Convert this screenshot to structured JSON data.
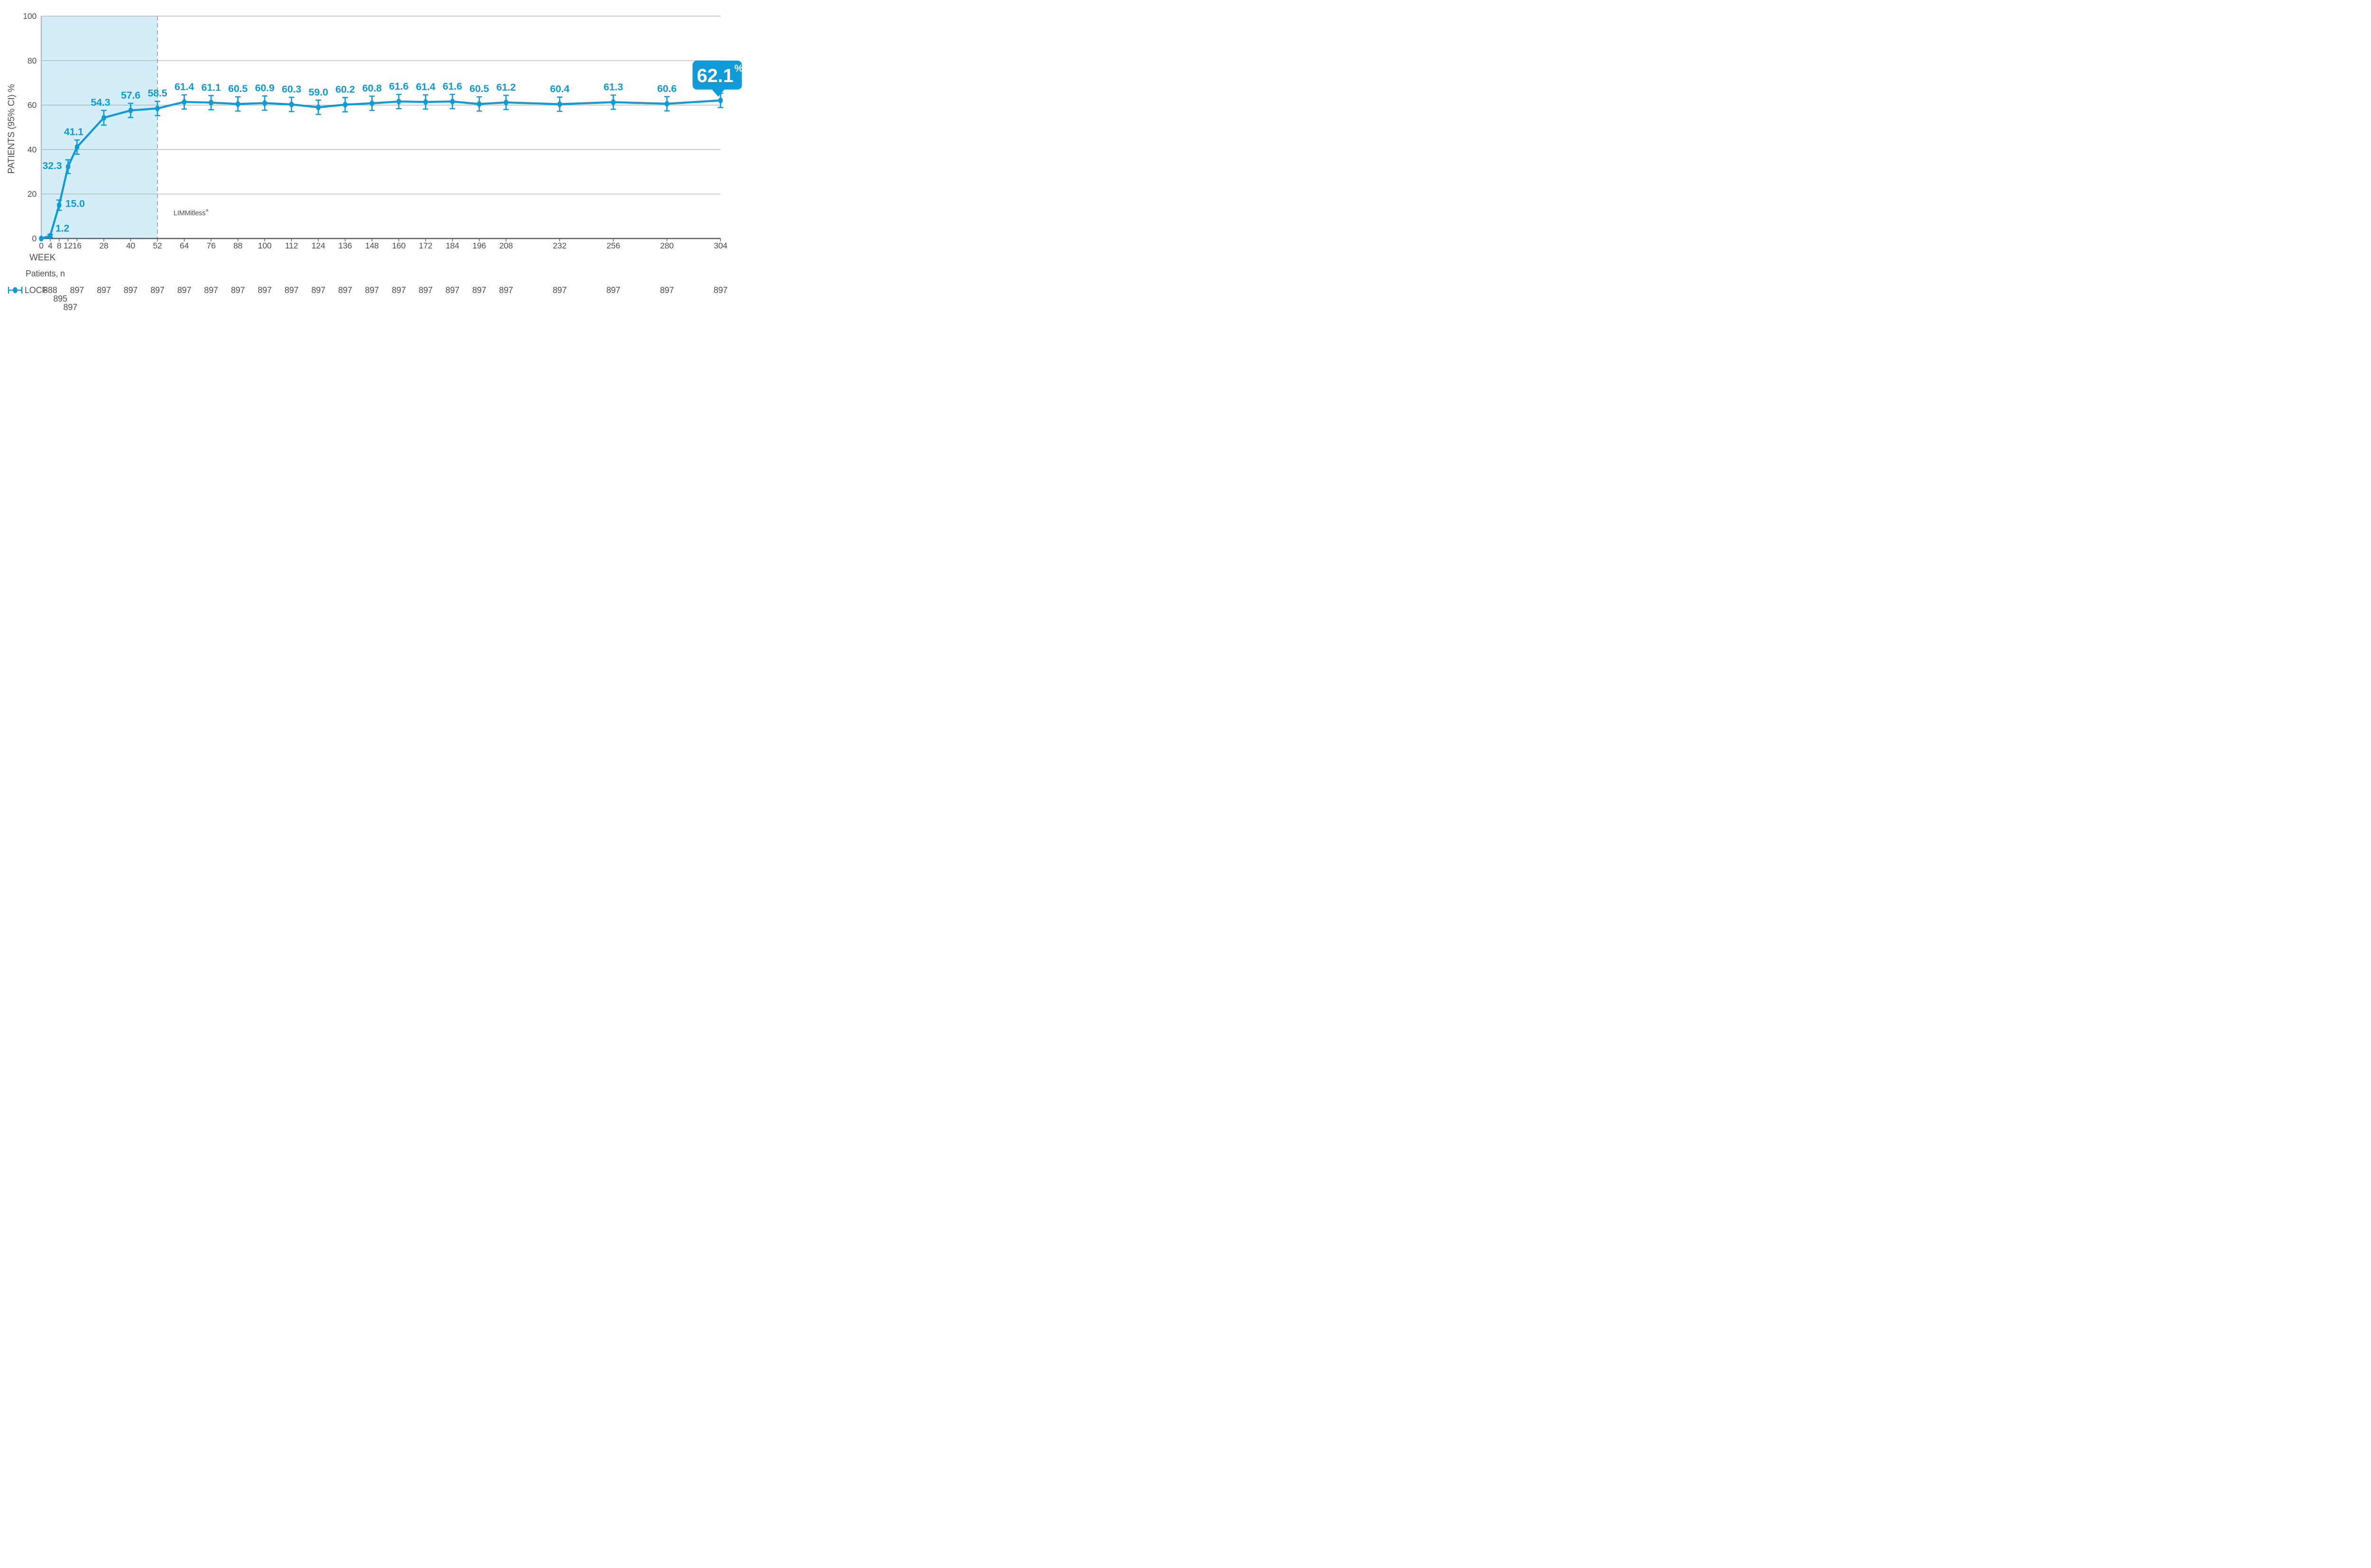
{
  "page": {
    "background": "#ffffff"
  },
  "colors": {
    "accent_blue": "#109bd8",
    "region_fill": "#d3edf9",
    "gridline": "#ababab",
    "dashed_line": "#9b9b9b",
    "x_axis": "#555a60",
    "y_axis": "#9aa2a8",
    "text_dark": "#4b5056",
    "callout_text": "#ffffff"
  },
  "chart_data": {
    "type": "line",
    "title": "",
    "ylabel": "PATIENTS (95% CI) %",
    "xlabel": "WEEK",
    "ylim": [
      0,
      100
    ],
    "yticks": [
      0,
      20,
      40,
      60,
      80,
      100
    ],
    "grid": "horizontal-on",
    "legend_position": "bottom-left",
    "patients_row_label": "Patients, n",
    "region_label": "LIMMitless",
    "region_label_sup": "a",
    "shaded_region": {
      "from_week": 0,
      "to_week": 52
    },
    "callout": {
      "week": 304,
      "value": "62.1",
      "unit": "%"
    },
    "series": [
      {
        "name": "LOCF",
        "points": [
          {
            "week": 0,
            "value": 0,
            "err": 0,
            "n": 888,
            "label": null,
            "label_side": null,
            "n_text": "888",
            "n_row": 1,
            "n_week": 4
          },
          {
            "week": 4,
            "value": 1.2,
            "err": 0.7,
            "n": 895,
            "label": "1.2",
            "label_side": "right-up",
            "n_text": "895",
            "n_row": 2,
            "n_week": 8.5
          },
          {
            "week": 8,
            "value": 15.0,
            "err": 2.3,
            "n": 897,
            "label": "15.0",
            "label_side": "right",
            "n_text": "897",
            "n_row": 3,
            "n_week": 13
          },
          {
            "week": 12,
            "value": 32.3,
            "err": 3.1,
            "n": 897,
            "label": "32.3",
            "label_side": "left",
            "n_text": null,
            "n_row": null,
            "n_week": null
          },
          {
            "week": 16,
            "value": 41.1,
            "err": 3.2,
            "n": 897,
            "label": "41.1",
            "label_side": "above-left",
            "n_text": "897",
            "n_row": 1,
            "n_week": 16
          },
          {
            "week": 28,
            "value": 54.3,
            "err": 3.3,
            "n": 897,
            "label": "54.3",
            "label_side": "above-left",
            "n_text": "897",
            "n_row": 1,
            "n_week": 28
          },
          {
            "week": 40,
            "value": 57.6,
            "err": 3.2,
            "n": 897,
            "label": "57.6",
            "label_side": "above",
            "n_text": "897",
            "n_row": 1,
            "n_week": 40
          },
          {
            "week": 52,
            "value": 58.5,
            "err": 3.2,
            "n": 897,
            "label": "58.5",
            "label_side": "above",
            "n_text": "897",
            "n_row": 1,
            "n_week": 52
          },
          {
            "week": 64,
            "value": 61.4,
            "err": 3.2,
            "n": 897,
            "label": "61.4",
            "label_side": "above",
            "n_text": "897",
            "n_row": 1,
            "n_week": 64
          },
          {
            "week": 76,
            "value": 61.1,
            "err": 3.2,
            "n": 897,
            "label": "61.1",
            "label_side": "above",
            "n_text": "897",
            "n_row": 1,
            "n_week": 76
          },
          {
            "week": 88,
            "value": 60.5,
            "err": 3.2,
            "n": 897,
            "label": "60.5",
            "label_side": "above",
            "n_text": "897",
            "n_row": 1,
            "n_week": 88
          },
          {
            "week": 100,
            "value": 60.9,
            "err": 3.2,
            "n": 897,
            "label": "60.9",
            "label_side": "above",
            "n_text": "897",
            "n_row": 1,
            "n_week": 100
          },
          {
            "week": 112,
            "value": 60.3,
            "err": 3.2,
            "n": 897,
            "label": "60.3",
            "label_side": "above",
            "n_text": "897",
            "n_row": 1,
            "n_week": 112
          },
          {
            "week": 124,
            "value": 59.0,
            "err": 3.2,
            "n": 897,
            "label": "59.0",
            "label_side": "above",
            "n_text": "897",
            "n_row": 1,
            "n_week": 124
          },
          {
            "week": 136,
            "value": 60.2,
            "err": 3.2,
            "n": 897,
            "label": "60.2",
            "label_side": "above",
            "n_text": "897",
            "n_row": 1,
            "n_week": 136
          },
          {
            "week": 148,
            "value": 60.8,
            "err": 3.2,
            "n": 897,
            "label": "60.8",
            "label_side": "above",
            "n_text": "897",
            "n_row": 1,
            "n_week": 148
          },
          {
            "week": 160,
            "value": 61.6,
            "err": 3.2,
            "n": 897,
            "label": "61.6",
            "label_side": "above",
            "n_text": "897",
            "n_row": 1,
            "n_week": 160
          },
          {
            "week": 172,
            "value": 61.4,
            "err": 3.2,
            "n": 897,
            "label": "61.4",
            "label_side": "above",
            "n_text": "897",
            "n_row": 1,
            "n_week": 172
          },
          {
            "week": 184,
            "value": 61.6,
            "err": 3.2,
            "n": 897,
            "label": "61.6",
            "label_side": "above",
            "n_text": "897",
            "n_row": 1,
            "n_week": 184
          },
          {
            "week": 196,
            "value": 60.5,
            "err": 3.2,
            "n": 897,
            "label": "60.5",
            "label_side": "above",
            "n_text": "897",
            "n_row": 1,
            "n_week": 196
          },
          {
            "week": 208,
            "value": 61.2,
            "err": 3.2,
            "n": 897,
            "label": "61.2",
            "label_side": "above",
            "n_text": "897",
            "n_row": 1,
            "n_week": 208
          },
          {
            "week": 232,
            "value": 60.4,
            "err": 3.2,
            "n": 897,
            "label": "60.4",
            "label_side": "above",
            "n_text": "897",
            "n_row": 1,
            "n_week": 232
          },
          {
            "week": 256,
            "value": 61.3,
            "err": 3.2,
            "n": 897,
            "label": "61.3",
            "label_side": "above",
            "n_text": "897",
            "n_row": 1,
            "n_week": 256
          },
          {
            "week": 280,
            "value": 60.6,
            "err": 3.2,
            "n": 897,
            "label": "60.6",
            "label_side": "above",
            "n_text": "897",
            "n_row": 1,
            "n_week": 280
          },
          {
            "week": 304,
            "value": 62.1,
            "err": 3.2,
            "n": 897,
            "label": "62.1",
            "label_side": "callout",
            "n_text": "897",
            "n_row": 1,
            "n_week": 304
          }
        ]
      }
    ]
  }
}
